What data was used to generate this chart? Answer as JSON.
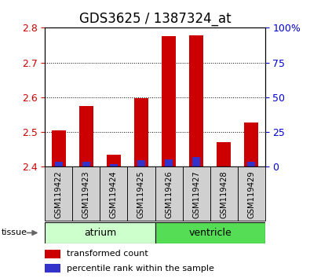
{
  "title": "GDS3625 / 1387324_at",
  "samples": [
    "GSM119422",
    "GSM119423",
    "GSM119424",
    "GSM119425",
    "GSM119426",
    "GSM119427",
    "GSM119428",
    "GSM119429"
  ],
  "red_values": [
    2.505,
    2.575,
    2.435,
    2.598,
    2.775,
    2.778,
    2.472,
    2.527
  ],
  "blue_values": [
    2.415,
    2.415,
    2.408,
    2.418,
    2.422,
    2.428,
    2.4,
    2.415
  ],
  "base_value": 2.4,
  "ylim_left": [
    2.4,
    2.8
  ],
  "yticks_left": [
    2.4,
    2.5,
    2.6,
    2.7,
    2.8
  ],
  "yticks_right": [
    0,
    25,
    50,
    75,
    100
  ],
  "ylim_right": [
    0,
    100
  ],
  "groups": [
    {
      "label": "atrium",
      "start": 0,
      "end": 3,
      "color": "#ccffcc"
    },
    {
      "label": "ventricle",
      "start": 4,
      "end": 7,
      "color": "#55dd55"
    }
  ],
  "tissue_label": "tissue",
  "bar_width": 0.5,
  "red_color": "#cc0000",
  "blue_color": "#3333cc",
  "background_color": "#ffffff",
  "plot_bg_color": "#ffffff",
  "grid_color": "#000000",
  "title_fontsize": 12,
  "tick_fontsize": 9,
  "label_fontsize": 9,
  "left_tick_color": "#cc0000",
  "right_tick_color": "#0000cc",
  "sample_box_color": "#d0d0d0"
}
